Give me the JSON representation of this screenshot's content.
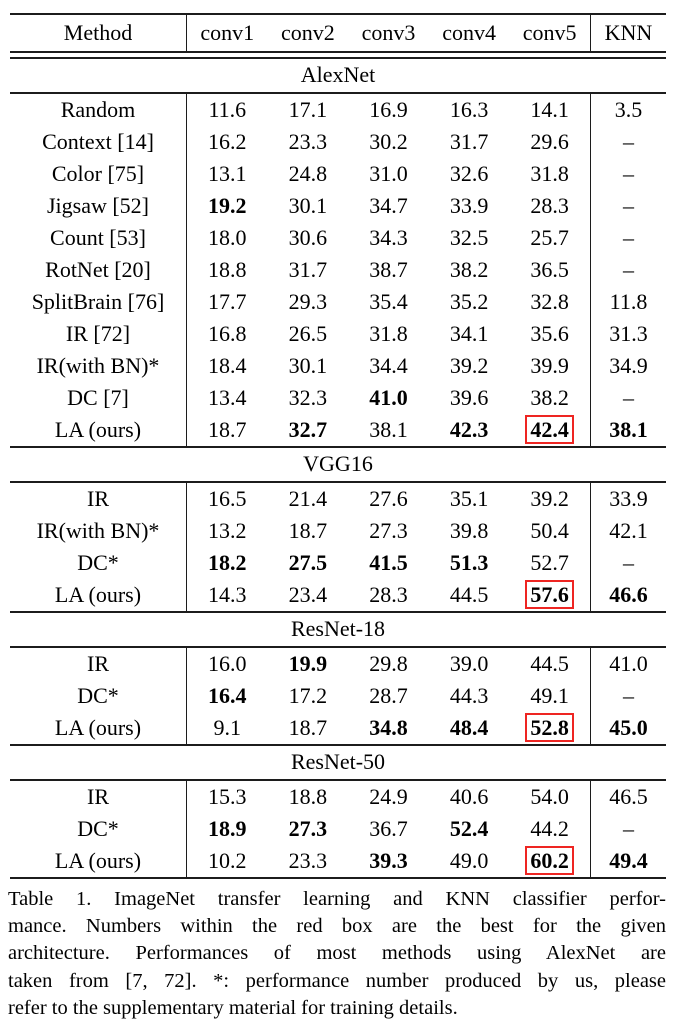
{
  "colors": {
    "box_red": "#ee2522",
    "rule": "#1c1c1c",
    "text": "#000000",
    "background": "#ffffff"
  },
  "table": {
    "columns": [
      "Method",
      "conv1",
      "conv2",
      "conv3",
      "conv4",
      "conv5",
      "KNN"
    ],
    "sections": [
      {
        "title": "AlexNet",
        "rows": [
          {
            "method": "Random",
            "values": [
              "11.6",
              "17.1",
              "16.9",
              "16.3",
              "14.1",
              "3.5"
            ],
            "bold": [
              0,
              0,
              0,
              0,
              0,
              0
            ],
            "boxed": -1
          },
          {
            "method": "Context [14]",
            "values": [
              "16.2",
              "23.3",
              "30.2",
              "31.7",
              "29.6",
              "–"
            ],
            "bold": [
              0,
              0,
              0,
              0,
              0,
              0
            ],
            "boxed": -1
          },
          {
            "method": "Color [75]",
            "values": [
              "13.1",
              "24.8",
              "31.0",
              "32.6",
              "31.8",
              "–"
            ],
            "bold": [
              0,
              0,
              0,
              0,
              0,
              0
            ],
            "boxed": -1
          },
          {
            "method": "Jigsaw [52]",
            "values": [
              "19.2",
              "30.1",
              "34.7",
              "33.9",
              "28.3",
              "–"
            ],
            "bold": [
              1,
              0,
              0,
              0,
              0,
              0
            ],
            "boxed": -1
          },
          {
            "method": "Count [53]",
            "values": [
              "18.0",
              "30.6",
              "34.3",
              "32.5",
              "25.7",
              "–"
            ],
            "bold": [
              0,
              0,
              0,
              0,
              0,
              0
            ],
            "boxed": -1
          },
          {
            "method": "RotNet [20]",
            "values": [
              "18.8",
              "31.7",
              "38.7",
              "38.2",
              "36.5",
              "–"
            ],
            "bold": [
              0,
              0,
              0,
              0,
              0,
              0
            ],
            "boxed": -1
          },
          {
            "method": "SplitBrain [76]",
            "values": [
              "17.7",
              "29.3",
              "35.4",
              "35.2",
              "32.8",
              "11.8"
            ],
            "bold": [
              0,
              0,
              0,
              0,
              0,
              0
            ],
            "boxed": -1
          },
          {
            "method": "IR [72]",
            "values": [
              "16.8",
              "26.5",
              "31.8",
              "34.1",
              "35.6",
              "31.3"
            ],
            "bold": [
              0,
              0,
              0,
              0,
              0,
              0
            ],
            "boxed": -1
          },
          {
            "method": "IR(with BN)*",
            "values": [
              "18.4",
              "30.1",
              "34.4",
              "39.2",
              "39.9",
              "34.9"
            ],
            "bold": [
              0,
              0,
              0,
              0,
              0,
              0
            ],
            "boxed": -1
          },
          {
            "method": "DC [7]",
            "values": [
              "13.4",
              "32.3",
              "41.0",
              "39.6",
              "38.2",
              "–"
            ],
            "bold": [
              0,
              0,
              1,
              0,
              0,
              0
            ],
            "boxed": -1
          },
          {
            "method": "LA (ours)",
            "values": [
              "18.7",
              "32.7",
              "38.1",
              "42.3",
              "42.4",
              "38.1"
            ],
            "bold": [
              0,
              1,
              0,
              1,
              1,
              1
            ],
            "boxed": 4
          }
        ]
      },
      {
        "title": "VGG16",
        "rows": [
          {
            "method": "IR",
            "values": [
              "16.5",
              "21.4",
              "27.6",
              "35.1",
              "39.2",
              "33.9"
            ],
            "bold": [
              0,
              0,
              0,
              0,
              0,
              0
            ],
            "boxed": -1
          },
          {
            "method": "IR(with BN)*",
            "values": [
              "13.2",
              "18.7",
              "27.3",
              "39.8",
              "50.4",
              "42.1"
            ],
            "bold": [
              0,
              0,
              0,
              0,
              0,
              0
            ],
            "boxed": -1
          },
          {
            "method": "DC*",
            "values": [
              "18.2",
              "27.5",
              "41.5",
              "51.3",
              "52.7",
              "–"
            ],
            "bold": [
              1,
              1,
              1,
              1,
              0,
              0
            ],
            "boxed": -1
          },
          {
            "method": "LA (ours)",
            "values": [
              "14.3",
              "23.4",
              "28.3",
              "44.5",
              "57.6",
              "46.6"
            ],
            "bold": [
              0,
              0,
              0,
              0,
              1,
              1
            ],
            "boxed": 4
          }
        ]
      },
      {
        "title": "ResNet-18",
        "rows": [
          {
            "method": "IR",
            "values": [
              "16.0",
              "19.9",
              "29.8",
              "39.0",
              "44.5",
              "41.0"
            ],
            "bold": [
              0,
              1,
              0,
              0,
              0,
              0
            ],
            "boxed": -1
          },
          {
            "method": "DC*",
            "values": [
              "16.4",
              "17.2",
              "28.7",
              "44.3",
              "49.1",
              "–"
            ],
            "bold": [
              1,
              0,
              0,
              0,
              0,
              0
            ],
            "boxed": -1
          },
          {
            "method": "LA (ours)",
            "values": [
              "9.1",
              "18.7",
              "34.8",
              "48.4",
              "52.8",
              "45.0"
            ],
            "bold": [
              0,
              0,
              1,
              1,
              1,
              1
            ],
            "boxed": 4
          }
        ]
      },
      {
        "title": "ResNet-50",
        "rows": [
          {
            "method": "IR",
            "values": [
              "15.3",
              "18.8",
              "24.9",
              "40.6",
              "54.0",
              "46.5"
            ],
            "bold": [
              0,
              0,
              0,
              0,
              0,
              0
            ],
            "boxed": -1
          },
          {
            "method": "DC*",
            "values": [
              "18.9",
              "27.3",
              "36.7",
              "52.4",
              "44.2",
              "–"
            ],
            "bold": [
              1,
              1,
              0,
              1,
              0,
              0
            ],
            "boxed": -1
          },
          {
            "method": "LA (ours)",
            "values": [
              "10.2",
              "23.3",
              "39.3",
              "49.0",
              "60.2",
              "49.4"
            ],
            "bold": [
              0,
              0,
              1,
              0,
              1,
              1
            ],
            "boxed": 4
          }
        ]
      }
    ]
  },
  "caption": {
    "lines": [
      "Table 1.  ImageNet transfer learning and KNN classifier perfor-",
      "mance.  Numbers within the red box are the best for the given",
      "architecture.  Performances of most methods using AlexNet are",
      "taken from [7, 72]. *: performance number produced by us, please",
      "refer to the supplementary material for training details."
    ]
  }
}
